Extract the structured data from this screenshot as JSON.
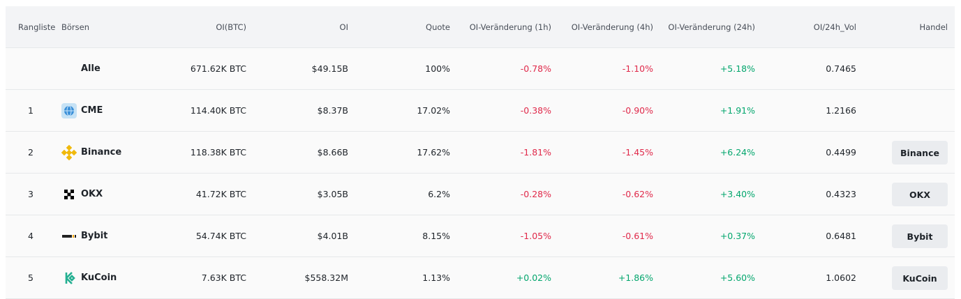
{
  "table": {
    "header": [
      "Rangliste",
      "Börsen",
      "OI(BTC)",
      "OI",
      "Quote",
      "OI-Veränderung (1h)",
      "OI-Veränderung (4h)",
      "OI-Veränderung (24h)",
      "OI/24h_Vol",
      "Handel"
    ],
    "rows": [
      {
        "name": "Alle",
        "oi_btc": "671.62K BTC",
        "oi": "$49.15B",
        "quote": "100%",
        "ch1h": "-0.78%",
        "ch4h": "-1.10%",
        "ch24h": "+5.18%",
        "ratio": "0.7465"
      },
      {
        "rank": "1",
        "name": "CME",
        "oi_btc": "114.40K BTC",
        "oi": "$8.37B",
        "quote": "17.02%",
        "ch1h": "-0.38%",
        "ch4h": "-0.90%",
        "ch24h": "+1.91%",
        "ratio": "1.2166"
      },
      {
        "rank": "2",
        "name": "Binance",
        "oi_btc": "118.38K BTC",
        "oi": "$8.66B",
        "quote": "17.62%",
        "ch1h": "-1.81%",
        "ch4h": "-1.45%",
        "ch24h": "+6.24%",
        "ratio": "0.4499",
        "trade": "Binance"
      },
      {
        "rank": "3",
        "name": "OKX",
        "oi_btc": "41.72K BTC",
        "oi": "$3.05B",
        "quote": "6.2%",
        "ch1h": "-0.28%",
        "ch4h": "-0.62%",
        "ch24h": "+3.40%",
        "ratio": "0.4323",
        "trade": "OKX"
      },
      {
        "rank": "4",
        "name": "Bybit",
        "oi_btc": "54.74K BTC",
        "oi": "$4.01B",
        "quote": "8.15%",
        "ch1h": "-1.05%",
        "ch4h": "-0.61%",
        "ch24h": "+0.37%",
        "ratio": "0.6481",
        "trade": "Bybit"
      },
      {
        "rank": "5",
        "name": "KuCoin",
        "oi_btc": "7.63K BTC",
        "oi": "$558.32M",
        "quote": "1.13%",
        "ch1h": "+0.02%",
        "ch4h": "+1.86%",
        "ch24h": "+5.60%",
        "ratio": "1.0602",
        "trade": "KuCoin"
      }
    ]
  }
}
